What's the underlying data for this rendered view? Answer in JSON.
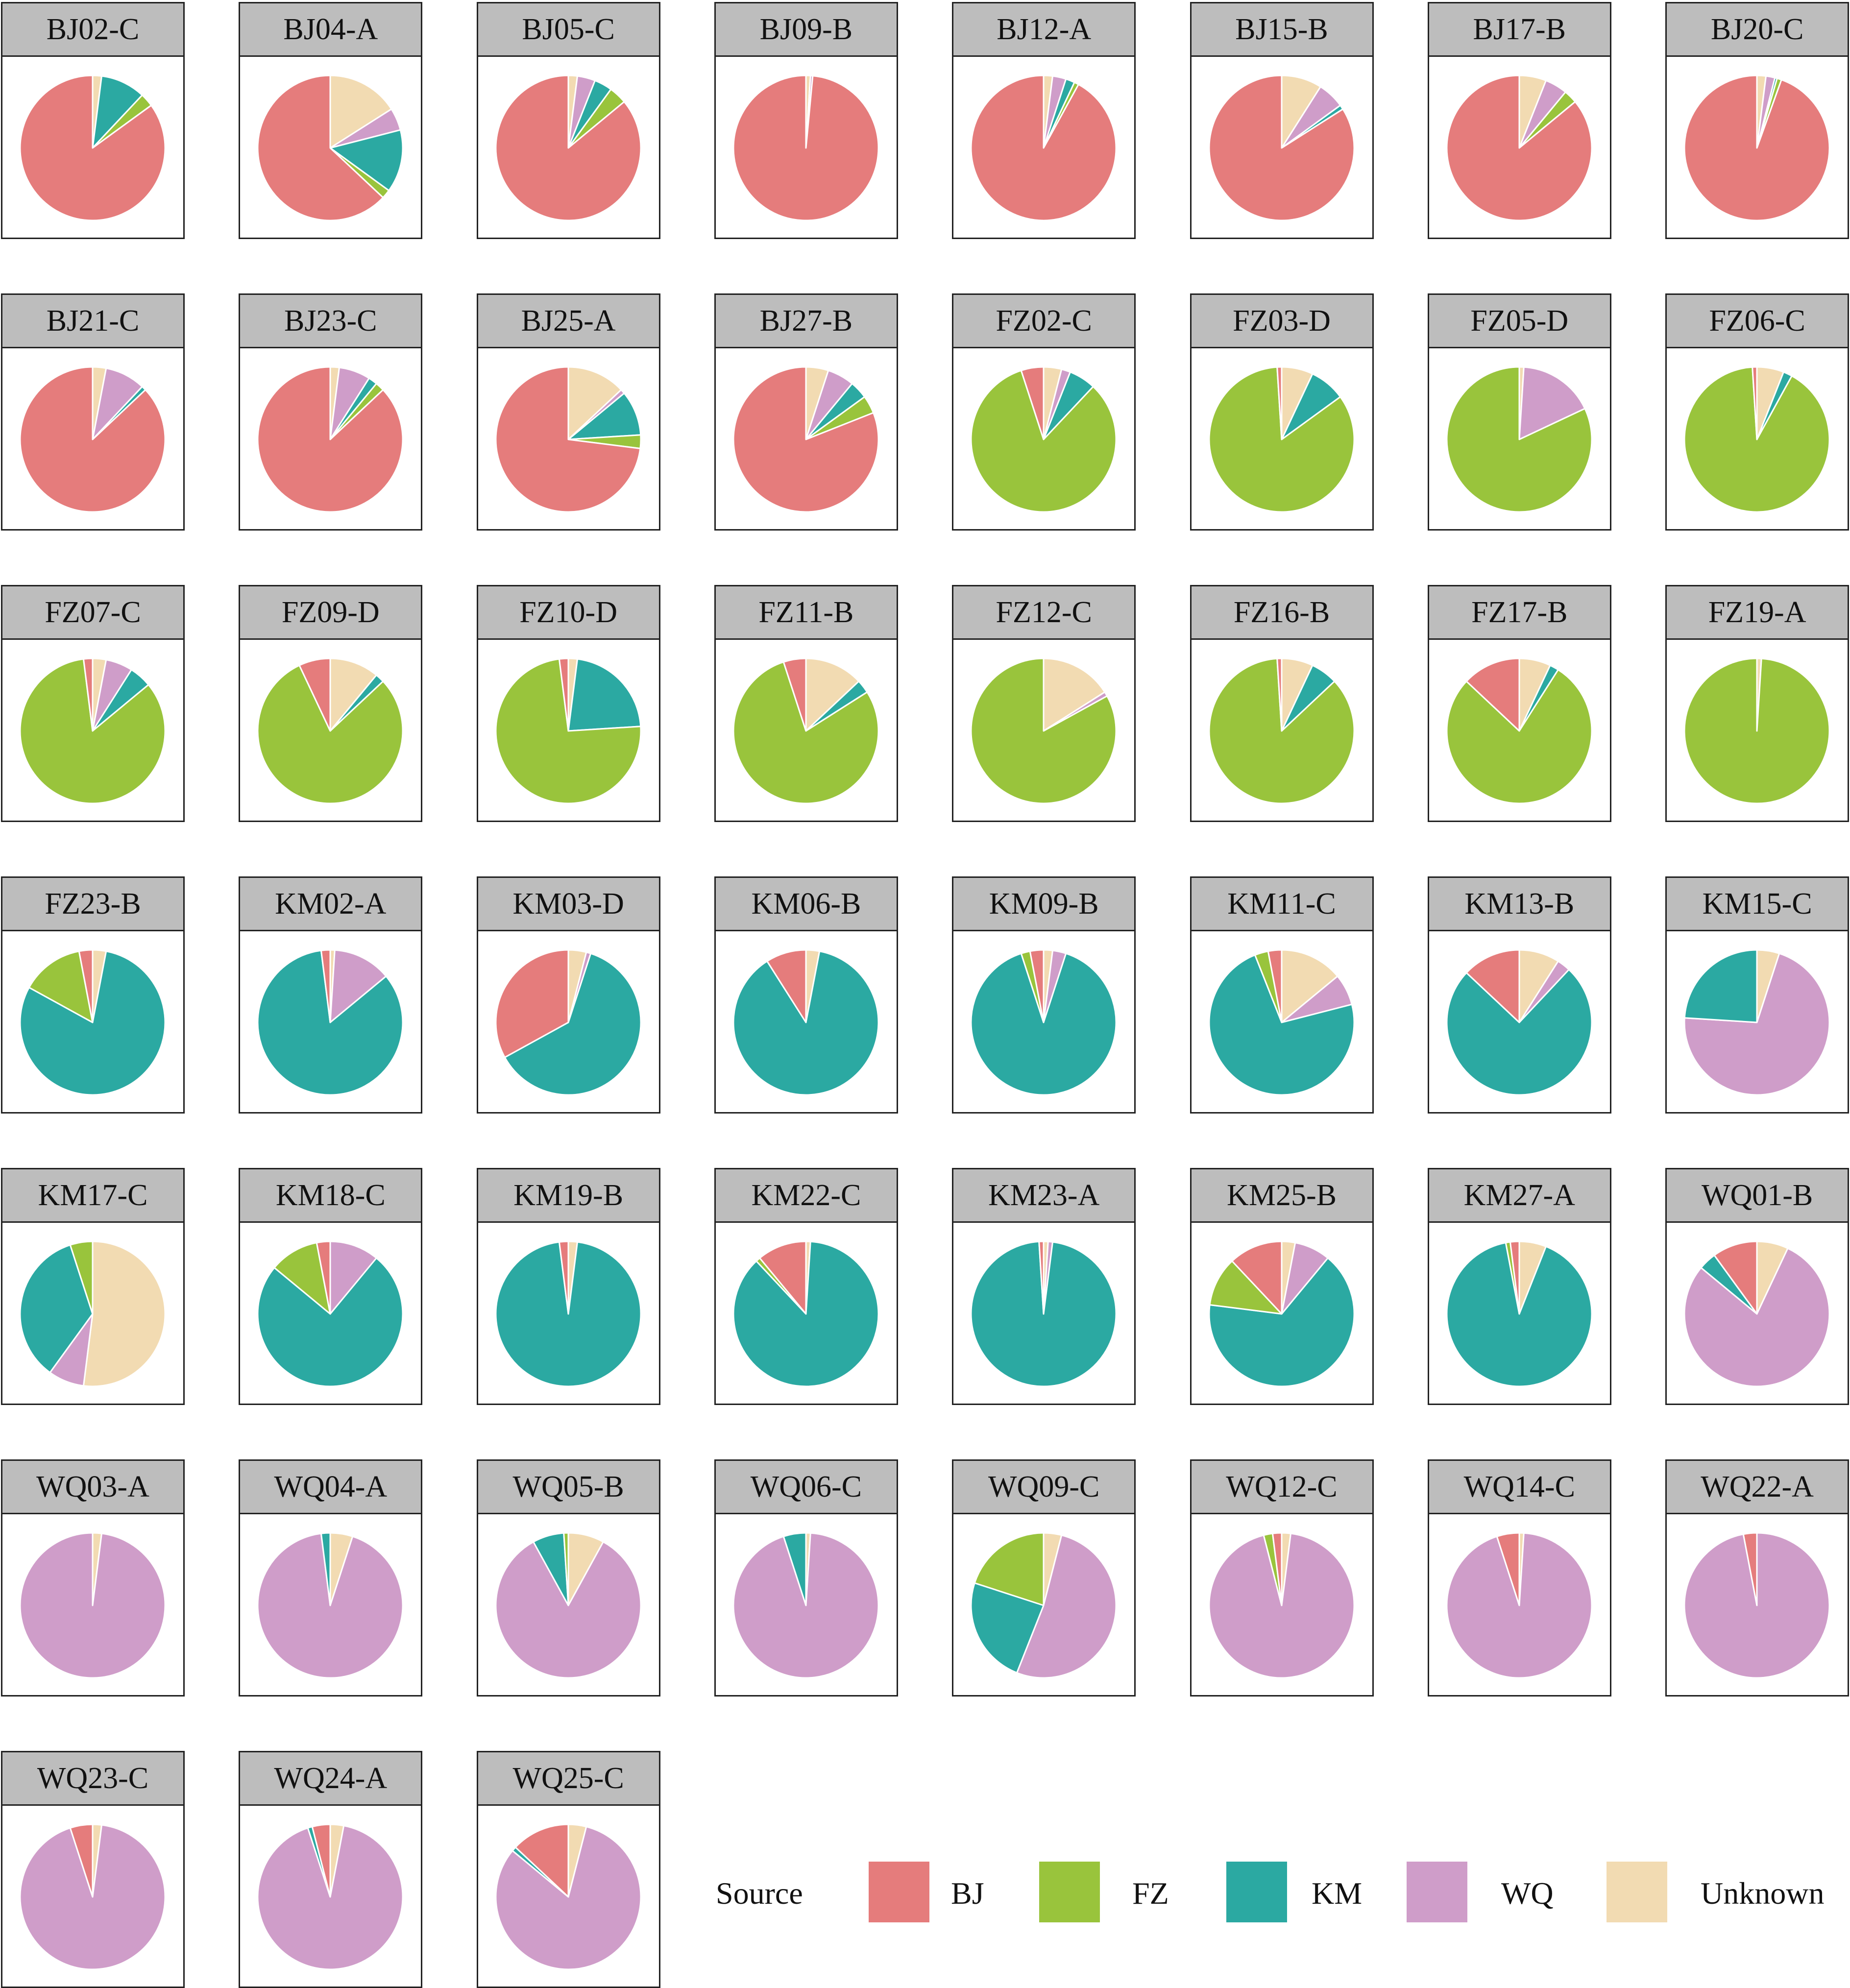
{
  "chart_data": {
    "type": "pie",
    "title": "",
    "slice_order": [
      "Unknown",
      "WQ",
      "KM",
      "FZ",
      "BJ"
    ],
    "colors": {
      "BJ": "#e57c7c",
      "FZ": "#99c43c",
      "KM": "#2ba9a2",
      "WQ": "#cf9dc9",
      "Unknown": "#f2dbb2"
    },
    "legend": {
      "title": "Source",
      "entries": [
        "BJ",
        "FZ",
        "KM",
        "WQ",
        "Unknown"
      ],
      "placement": "bottom-right"
    },
    "charts": [
      {
        "title": "BJ02-C",
        "values": {
          "Unknown": 2,
          "WQ": 0,
          "KM": 10,
          "FZ": 3,
          "BJ": 85
        }
      },
      {
        "title": "BJ04-A",
        "values": {
          "Unknown": 16,
          "WQ": 5,
          "KM": 14,
          "FZ": 2,
          "BJ": 63
        }
      },
      {
        "title": "BJ05-C",
        "values": {
          "Unknown": 2,
          "WQ": 4,
          "KM": 4,
          "FZ": 4,
          "BJ": 86
        }
      },
      {
        "title": "BJ09-B",
        "values": {
          "Unknown": 1,
          "WQ": 0.5,
          "KM": 0,
          "FZ": 0,
          "BJ": 98.5
        }
      },
      {
        "title": "BJ12-A",
        "values": {
          "Unknown": 2,
          "WQ": 3,
          "KM": 2,
          "FZ": 1,
          "BJ": 92
        }
      },
      {
        "title": "BJ15-B",
        "values": {
          "Unknown": 9,
          "WQ": 6,
          "KM": 1,
          "FZ": 0,
          "BJ": 84
        }
      },
      {
        "title": "BJ17-B",
        "values": {
          "Unknown": 6,
          "WQ": 5,
          "KM": 0,
          "FZ": 3,
          "BJ": 86
        }
      },
      {
        "title": "BJ20-C",
        "values": {
          "Unknown": 2,
          "WQ": 2,
          "KM": 0.5,
          "FZ": 1,
          "BJ": 94.5
        }
      },
      {
        "title": "BJ21-C",
        "values": {
          "Unknown": 3,
          "WQ": 9,
          "KM": 1,
          "FZ": 0,
          "BJ": 87
        }
      },
      {
        "title": "BJ23-C",
        "values": {
          "Unknown": 2,
          "WQ": 7,
          "KM": 2,
          "FZ": 2,
          "BJ": 87
        }
      },
      {
        "title": "BJ25-A",
        "values": {
          "Unknown": 13,
          "WQ": 1,
          "KM": 10,
          "FZ": 3,
          "BJ": 73
        }
      },
      {
        "title": "BJ27-B",
        "values": {
          "Unknown": 5,
          "WQ": 6,
          "KM": 4,
          "FZ": 4,
          "BJ": 81
        }
      },
      {
        "title": "FZ02-C",
        "values": {
          "Unknown": 4,
          "WQ": 2,
          "KM": 6,
          "FZ": 83,
          "BJ": 5
        }
      },
      {
        "title": "FZ03-D",
        "values": {
          "Unknown": 7,
          "WQ": 0,
          "KM": 8,
          "FZ": 84,
          "BJ": 1
        }
      },
      {
        "title": "FZ05-D",
        "values": {
          "Unknown": 1,
          "WQ": 17,
          "KM": 0,
          "FZ": 82,
          "BJ": 0
        }
      },
      {
        "title": "FZ06-C",
        "values": {
          "Unknown": 6,
          "WQ": 0,
          "KM": 2,
          "FZ": 91,
          "BJ": 1
        }
      },
      {
        "title": "FZ07-C",
        "values": {
          "Unknown": 3,
          "WQ": 6,
          "KM": 5,
          "FZ": 84,
          "BJ": 2
        }
      },
      {
        "title": "FZ09-D",
        "values": {
          "Unknown": 11,
          "WQ": 0,
          "KM": 2,
          "FZ": 80,
          "BJ": 7
        }
      },
      {
        "title": "FZ10-D",
        "values": {
          "Unknown": 2,
          "WQ": 0,
          "KM": 22,
          "FZ": 74,
          "BJ": 2
        }
      },
      {
        "title": "FZ11-B",
        "values": {
          "Unknown": 13,
          "WQ": 0,
          "KM": 3,
          "FZ": 79,
          "BJ": 5
        }
      },
      {
        "title": "FZ12-C",
        "values": {
          "Unknown": 16,
          "WQ": 1,
          "KM": 0,
          "FZ": 83,
          "BJ": 0
        }
      },
      {
        "title": "FZ16-B",
        "values": {
          "Unknown": 7,
          "WQ": 0,
          "KM": 6,
          "FZ": 86,
          "BJ": 1
        }
      },
      {
        "title": "FZ17-B",
        "values": {
          "Unknown": 7,
          "WQ": 0,
          "KM": 2,
          "FZ": 78,
          "BJ": 13
        }
      },
      {
        "title": "FZ19-A",
        "values": {
          "Unknown": 1,
          "WQ": 0,
          "KM": 0,
          "FZ": 99,
          "BJ": 0
        }
      },
      {
        "title": "FZ23-B",
        "values": {
          "Unknown": 3,
          "WQ": 0,
          "KM": 80,
          "FZ": 14,
          "BJ": 3
        }
      },
      {
        "title": "KM02-A",
        "values": {
          "Unknown": 1,
          "WQ": 13,
          "KM": 84,
          "FZ": 0,
          "BJ": 2
        }
      },
      {
        "title": "KM03-D",
        "values": {
          "Unknown": 4,
          "WQ": 1,
          "KM": 62,
          "FZ": 0,
          "BJ": 33
        }
      },
      {
        "title": "KM06-B",
        "values": {
          "Unknown": 3,
          "WQ": 0,
          "KM": 88,
          "FZ": 0,
          "BJ": 9
        }
      },
      {
        "title": "KM09-B",
        "values": {
          "Unknown": 2,
          "WQ": 3,
          "KM": 90,
          "FZ": 2,
          "BJ": 3
        }
      },
      {
        "title": "KM11-C",
        "values": {
          "Unknown": 14,
          "WQ": 7,
          "KM": 73,
          "FZ": 3,
          "BJ": 3
        }
      },
      {
        "title": "KM13-B",
        "values": {
          "Unknown": 9,
          "WQ": 3,
          "KM": 75,
          "FZ": 0,
          "BJ": 13
        }
      },
      {
        "title": "KM15-C",
        "values": {
          "Unknown": 5,
          "WQ": 71,
          "KM": 24,
          "FZ": 0,
          "BJ": 0
        }
      },
      {
        "title": "KM17-C",
        "values": {
          "Unknown": 52,
          "WQ": 8,
          "KM": 35,
          "FZ": 5,
          "BJ": 0
        }
      },
      {
        "title": "KM18-C",
        "values": {
          "Unknown": 0,
          "WQ": 11,
          "KM": 75,
          "FZ": 11,
          "BJ": 3
        }
      },
      {
        "title": "KM19-B",
        "values": {
          "Unknown": 2,
          "WQ": 0,
          "KM": 96,
          "FZ": 0,
          "BJ": 2
        }
      },
      {
        "title": "KM22-C",
        "values": {
          "Unknown": 1,
          "WQ": 0,
          "KM": 87,
          "FZ": 1,
          "BJ": 11
        }
      },
      {
        "title": "KM23-A",
        "values": {
          "Unknown": 1,
          "WQ": 1,
          "KM": 97,
          "FZ": 0,
          "BJ": 1
        }
      },
      {
        "title": "KM25-B",
        "values": {
          "Unknown": 3,
          "WQ": 8,
          "KM": 66,
          "FZ": 11,
          "BJ": 12
        }
      },
      {
        "title": "KM27-A",
        "values": {
          "Unknown": 6,
          "WQ": 0,
          "KM": 91,
          "FZ": 1,
          "BJ": 2
        }
      },
      {
        "title": "WQ01-B",
        "values": {
          "Unknown": 7,
          "WQ": 79,
          "KM": 4,
          "FZ": 0,
          "BJ": 10
        }
      },
      {
        "title": "WQ03-A",
        "values": {
          "Unknown": 2,
          "WQ": 98,
          "KM": 0,
          "FZ": 0,
          "BJ": 0
        }
      },
      {
        "title": "WQ04-A",
        "values": {
          "Unknown": 5,
          "WQ": 93,
          "KM": 2,
          "FZ": 0,
          "BJ": 0
        }
      },
      {
        "title": "WQ05-B",
        "values": {
          "Unknown": 8,
          "WQ": 84,
          "KM": 7,
          "FZ": 1,
          "BJ": 0
        }
      },
      {
        "title": "WQ06-C",
        "values": {
          "Unknown": 1,
          "WQ": 94,
          "KM": 5,
          "FZ": 0,
          "BJ": 0
        }
      },
      {
        "title": "WQ09-C",
        "values": {
          "Unknown": 4,
          "WQ": 52,
          "KM": 24,
          "FZ": 20,
          "BJ": 0
        }
      },
      {
        "title": "WQ12-C",
        "values": {
          "Unknown": 2,
          "WQ": 94,
          "KM": 0,
          "FZ": 2,
          "BJ": 2
        }
      },
      {
        "title": "WQ14-C",
        "values": {
          "Unknown": 1,
          "WQ": 94,
          "KM": 0,
          "FZ": 0,
          "BJ": 5
        }
      },
      {
        "title": "WQ22-A",
        "values": {
          "Unknown": 0,
          "WQ": 97,
          "KM": 0,
          "FZ": 0,
          "BJ": 3
        }
      },
      {
        "title": "WQ23-C",
        "values": {
          "Unknown": 2,
          "WQ": 93,
          "KM": 0,
          "FZ": 0,
          "BJ": 5
        }
      },
      {
        "title": "WQ24-A",
        "values": {
          "Unknown": 3,
          "WQ": 92,
          "KM": 1,
          "FZ": 0,
          "BJ": 4
        }
      },
      {
        "title": "WQ25-C",
        "values": {
          "Unknown": 4,
          "WQ": 82,
          "KM": 1,
          "FZ": 0,
          "BJ": 13
        }
      }
    ]
  }
}
